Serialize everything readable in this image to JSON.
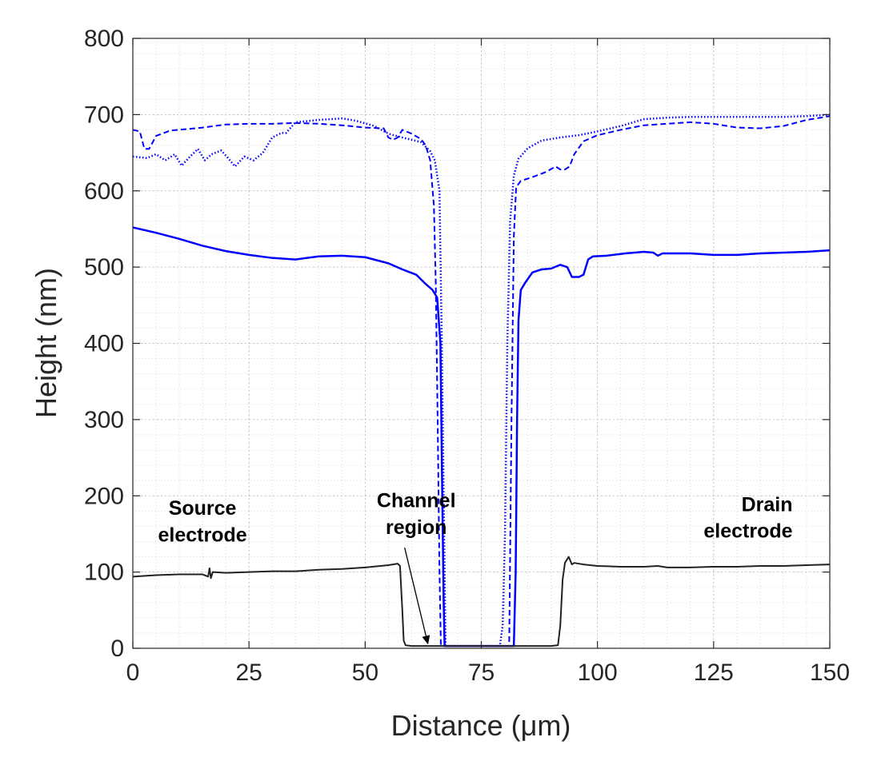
{
  "chart_data": {
    "type": "line",
    "title": "",
    "xlabel": "Distance (μm)",
    "ylabel": "Height (nm)",
    "xlim": [
      0,
      150
    ],
    "ylim": [
      0,
      800
    ],
    "xticks": [
      0,
      25,
      50,
      75,
      100,
      125,
      150
    ],
    "yticks": [
      0,
      100,
      200,
      300,
      400,
      500,
      600,
      700,
      800
    ],
    "grid": "minor-dotted",
    "legend": "none",
    "colors": {
      "blue": "#0000ff",
      "black": "#222222"
    },
    "series": [
      {
        "style": "solid",
        "color": "#0000ff",
        "width": 2.5,
        "points": [
          [
            0,
            552
          ],
          [
            5,
            545
          ],
          [
            10,
            537
          ],
          [
            15,
            528
          ],
          [
            20,
            521
          ],
          [
            25,
            516
          ],
          [
            30,
            512
          ],
          [
            35,
            510
          ],
          [
            40,
            514
          ],
          [
            45,
            515
          ],
          [
            50,
            513
          ],
          [
            55,
            505
          ],
          [
            58,
            497
          ],
          [
            61,
            490
          ],
          [
            63,
            478
          ],
          [
            64.5,
            470
          ],
          [
            65.5,
            460
          ],
          [
            66.2,
            400
          ],
          [
            66.6,
            200
          ],
          [
            66.9,
            60
          ],
          [
            67.1,
            3
          ],
          [
            70,
            3
          ],
          [
            75,
            3
          ],
          [
            80,
            3
          ],
          [
            82,
            3
          ],
          [
            82.4,
            100
          ],
          [
            82.7,
            300
          ],
          [
            83,
            430
          ],
          [
            83.5,
            470
          ],
          [
            84.5,
            480
          ],
          [
            86,
            493
          ],
          [
            88,
            497
          ],
          [
            90,
            498
          ],
          [
            92,
            503
          ],
          [
            93.5,
            500
          ],
          [
            94.5,
            487
          ],
          [
            96,
            487
          ],
          [
            97,
            490
          ],
          [
            98,
            510
          ],
          [
            99,
            514
          ],
          [
            102,
            515
          ],
          [
            106,
            518
          ],
          [
            110,
            520
          ],
          [
            112,
            519
          ],
          [
            113,
            515
          ],
          [
            114,
            518
          ],
          [
            120,
            518
          ],
          [
            125,
            516
          ],
          [
            130,
            516
          ],
          [
            135,
            518
          ],
          [
            140,
            519
          ],
          [
            145,
            520
          ],
          [
            150,
            522
          ]
        ]
      },
      {
        "style": "dashed",
        "color": "#0000ff",
        "width": 2,
        "points": [
          [
            0,
            680
          ],
          [
            1.5,
            678
          ],
          [
            2.5,
            655
          ],
          [
            3.5,
            655
          ],
          [
            5,
            672
          ],
          [
            8,
            679
          ],
          [
            15,
            683
          ],
          [
            20,
            687
          ],
          [
            25,
            688
          ],
          [
            30,
            688
          ],
          [
            35,
            689
          ],
          [
            40,
            688
          ],
          [
            45,
            686
          ],
          [
            50,
            683
          ],
          [
            54,
            682
          ],
          [
            55,
            670
          ],
          [
            56,
            667
          ],
          [
            57,
            670
          ],
          [
            58,
            680
          ],
          [
            60,
            675
          ],
          [
            62,
            668
          ],
          [
            63,
            660
          ],
          [
            64,
            640
          ],
          [
            64.8,
            580
          ],
          [
            65.2,
            480
          ],
          [
            65.6,
            300
          ],
          [
            66,
            100
          ],
          [
            66.3,
            3
          ],
          [
            70,
            3
          ],
          [
            75,
            3
          ],
          [
            80,
            3
          ],
          [
            81,
            3
          ],
          [
            81.5,
            300
          ],
          [
            82,
            540
          ],
          [
            82.5,
            605
          ],
          [
            83.5,
            613
          ],
          [
            86,
            618
          ],
          [
            89,
            625
          ],
          [
            91,
            632
          ],
          [
            92,
            628
          ],
          [
            93,
            628
          ],
          [
            94,
            632
          ],
          [
            95,
            648
          ],
          [
            97,
            665
          ],
          [
            100,
            673
          ],
          [
            105,
            680
          ],
          [
            110,
            686
          ],
          [
            115,
            688
          ],
          [
            120,
            690
          ],
          [
            125,
            688
          ],
          [
            130,
            683
          ],
          [
            135,
            682
          ],
          [
            140,
            685
          ],
          [
            145,
            693
          ],
          [
            150,
            698
          ]
        ]
      },
      {
        "style": "dotted",
        "color": "#0000ff",
        "width": 2.5,
        "points": [
          [
            0,
            645
          ],
          [
            3,
            643
          ],
          [
            5,
            648
          ],
          [
            7,
            640
          ],
          [
            9,
            648
          ],
          [
            10.5,
            633
          ],
          [
            12,
            643
          ],
          [
            14,
            655
          ],
          [
            15.5,
            640
          ],
          [
            17,
            648
          ],
          [
            19,
            653
          ],
          [
            20.5,
            643
          ],
          [
            22,
            632
          ],
          [
            24,
            645
          ],
          [
            26,
            640
          ],
          [
            28,
            650
          ],
          [
            30,
            670
          ],
          [
            32,
            676
          ],
          [
            33,
            676
          ],
          [
            35,
            690
          ],
          [
            40,
            693
          ],
          [
            45,
            695
          ],
          [
            48,
            692
          ],
          [
            52,
            685
          ],
          [
            55,
            675
          ],
          [
            58,
            670
          ],
          [
            62,
            664
          ],
          [
            64,
            652
          ],
          [
            65,
            640
          ],
          [
            66,
            600
          ],
          [
            66.5,
            400
          ],
          [
            67,
            150
          ],
          [
            67.3,
            3
          ],
          [
            70,
            3
          ],
          [
            75,
            3
          ],
          [
            79,
            3
          ],
          [
            79.6,
            30
          ],
          [
            80.1,
            150
          ],
          [
            80.6,
            400
          ],
          [
            81.2,
            560
          ],
          [
            82,
            620
          ],
          [
            83,
            642
          ],
          [
            85,
            656
          ],
          [
            88,
            666
          ],
          [
            92,
            670
          ],
          [
            96,
            673
          ],
          [
            100,
            678
          ],
          [
            105,
            685
          ],
          [
            110,
            694
          ],
          [
            115,
            696
          ],
          [
            120,
            697
          ],
          [
            125,
            697
          ],
          [
            130,
            697
          ],
          [
            135,
            697
          ],
          [
            140,
            697
          ],
          [
            145,
            698
          ],
          [
            150,
            700
          ]
        ]
      },
      {
        "style": "solid",
        "color": "#222222",
        "width": 2,
        "points": [
          [
            0,
            94
          ],
          [
            5,
            96
          ],
          [
            10,
            97
          ],
          [
            15,
            97
          ],
          [
            16.2,
            94
          ],
          [
            16.5,
            105
          ],
          [
            16.8,
            92
          ],
          [
            17.2,
            100
          ],
          [
            20,
            99
          ],
          [
            25,
            100
          ],
          [
            30,
            101
          ],
          [
            35,
            101
          ],
          [
            40,
            103
          ],
          [
            45,
            104
          ],
          [
            50,
            106
          ],
          [
            55,
            109
          ],
          [
            57,
            111
          ],
          [
            57.5,
            108
          ],
          [
            58,
            50
          ],
          [
            58.3,
            10
          ],
          [
            58.7,
            4
          ],
          [
            60,
            3
          ],
          [
            65,
            3
          ],
          [
            70,
            3
          ],
          [
            75,
            3
          ],
          [
            80,
            3
          ],
          [
            85,
            3
          ],
          [
            90,
            3
          ],
          [
            91.5,
            4
          ],
          [
            92,
            30
          ],
          [
            92.5,
            90
          ],
          [
            93,
            112
          ],
          [
            93.8,
            120
          ],
          [
            94.5,
            110
          ],
          [
            95,
            112
          ],
          [
            97,
            110
          ],
          [
            100,
            108
          ],
          [
            105,
            107
          ],
          [
            110,
            107
          ],
          [
            113,
            108
          ],
          [
            115,
            106
          ],
          [
            120,
            106
          ],
          [
            125,
            107
          ],
          [
            130,
            107
          ],
          [
            135,
            108
          ],
          [
            140,
            108
          ],
          [
            145,
            109
          ],
          [
            150,
            110
          ]
        ]
      }
    ],
    "annotations": [
      {
        "lines": [
          "Source",
          "electrode"
        ],
        "x": 15,
        "y": [
          175,
          140
        ],
        "anchor": "middle"
      },
      {
        "lines": [
          "Channel",
          "region"
        ],
        "x": 61,
        "y": [
          185,
          150
        ],
        "anchor": "middle"
      },
      {
        "lines": [
          "Drain",
          "electrode"
        ],
        "x": 142,
        "y": [
          180,
          145
        ],
        "anchor": "end"
      }
    ],
    "arrows": [
      {
        "from": [
          58.5,
          132
        ],
        "to": [
          63.5,
          6
        ]
      }
    ]
  }
}
